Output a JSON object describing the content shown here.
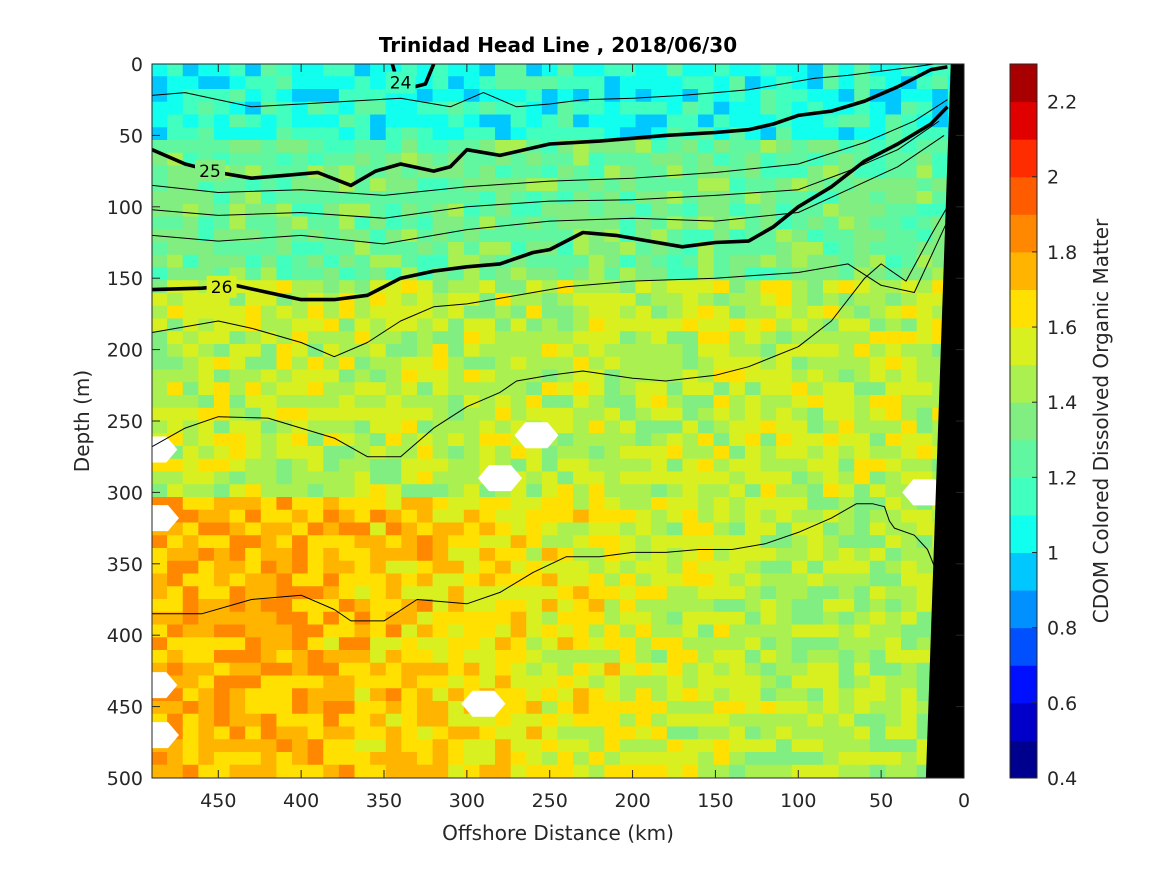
{
  "chart_data": {
    "type": "heatmap",
    "title": "Trinidad Head Line , 2018/06/30",
    "xlabel": "Offshore Distance (km)",
    "ylabel": "Depth (m)",
    "colorbar_label": "CDOM Colored Dissolved Organic Matter",
    "xlim": [
      490,
      0
    ],
    "ylim": [
      500,
      0
    ],
    "y_reversed": true,
    "x_reversed": true,
    "x_ticks": [
      450,
      400,
      350,
      300,
      250,
      200,
      150,
      100,
      50,
      0
    ],
    "y_ticks": [
      0,
      50,
      100,
      150,
      200,
      250,
      300,
      350,
      400,
      450,
      500
    ],
    "colorbar": {
      "range": [
        0.4,
        2.3
      ],
      "ticks": [
        0.4,
        0.6,
        0.8,
        1,
        1.2,
        1.4,
        1.6,
        1.8,
        2,
        2.2
      ],
      "levels": [
        0.4,
        0.5,
        0.6,
        0.7,
        0.8,
        0.9,
        1.0,
        1.1,
        1.2,
        1.3,
        1.4,
        1.5,
        1.6,
        1.7,
        1.8,
        1.9,
        2.0,
        2.1,
        2.2,
        2.3
      ],
      "colors": [
        "#00008f",
        "#0000c8",
        "#0010ff",
        "#0050ff",
        "#0090ff",
        "#00c8ff",
        "#10ffef",
        "#40ffbf",
        "#60f7a0",
        "#80ee80",
        "#aaf050",
        "#d8f020",
        "#ffe000",
        "#ffb400",
        "#ff8800",
        "#ff5c00",
        "#ff2c00",
        "#e00000",
        "#a80000"
      ]
    },
    "field_description": {
      "surface_0_50m": 1.1,
      "upper_50_150m": 1.3,
      "mid_150_300m": 1.5,
      "deep_offshore_300_500m": 1.75,
      "deep_nearshore_300_500m": 1.45
    },
    "isopycnals": [
      {
        "label": "24",
        "bold": true,
        "x": [
          345,
          342,
          335,
          325,
          320
        ],
        "y": [
          0,
          12,
          17,
          14,
          0
        ],
        "label_at": [
          340,
          13
        ]
      },
      {
        "label": "",
        "bold": false,
        "x": [
          490,
          470,
          450,
          430,
          400,
          370,
          340,
          310,
          290,
          270,
          250,
          230,
          200,
          170,
          150,
          130,
          110,
          90,
          70,
          50,
          30,
          18
        ],
        "y": [
          22,
          20,
          25,
          30,
          28,
          26,
          24,
          30,
          20,
          30,
          28,
          25,
          24,
          22,
          20,
          18,
          14,
          10,
          8,
          5,
          2,
          0
        ]
      },
      {
        "label": "25",
        "bold": true,
        "x": [
          490,
          470,
          450,
          430,
          410,
          390,
          370,
          355,
          340,
          320,
          310,
          300,
          280,
          250,
          220,
          200,
          180,
          150,
          130,
          115,
          100,
          80,
          60,
          40,
          20,
          10
        ],
        "y": [
          60,
          70,
          76,
          80,
          78,
          76,
          85,
          75,
          70,
          75,
          72,
          60,
          64,
          56,
          54,
          52,
          50,
          48,
          46,
          42,
          36,
          33,
          26,
          16,
          4,
          2
        ],
        "label_at": [
          455,
          75
        ]
      },
      {
        "label": "",
        "bold": false,
        "x": [
          490,
          450,
          400,
          350,
          300,
          250,
          200,
          150,
          100,
          60,
          30,
          10
        ],
        "y": [
          85,
          90,
          88,
          92,
          86,
          82,
          80,
          76,
          70,
          55,
          40,
          25
        ]
      },
      {
        "label": "",
        "bold": false,
        "x": [
          490,
          450,
          400,
          350,
          300,
          250,
          200,
          150,
          100,
          70,
          40,
          15
        ],
        "y": [
          102,
          106,
          104,
          108,
          100,
          96,
          95,
          92,
          88,
          75,
          60,
          40
        ]
      },
      {
        "label": "",
        "bold": false,
        "x": [
          490,
          450,
          400,
          350,
          300,
          250,
          200,
          150,
          100,
          70,
          40,
          12
        ],
        "y": [
          120,
          124,
          120,
          126,
          116,
          110,
          108,
          110,
          104,
          88,
          72,
          50
        ]
      },
      {
        "label": "26",
        "bold": true,
        "x": [
          490,
          460,
          440,
          420,
          400,
          380,
          360,
          350,
          340,
          320,
          300,
          280,
          260,
          250,
          230,
          210,
          190,
          170,
          150,
          130,
          115,
          100,
          80,
          60,
          40,
          20,
          10
        ],
        "y": [
          158,
          157,
          155,
          160,
          165,
          165,
          162,
          156,
          150,
          145,
          142,
          140,
          132,
          130,
          118,
          120,
          124,
          128,
          125,
          124,
          114,
          100,
          86,
          68,
          56,
          42,
          30
        ],
        "label_at": [
          448,
          156
        ]
      },
      {
        "label": "",
        "bold": false,
        "x": [
          490,
          470,
          450,
          430,
          400,
          380,
          360,
          340,
          320,
          300,
          280,
          260,
          240,
          200,
          150,
          100,
          70,
          50,
          30,
          10
        ],
        "y": [
          188,
          184,
          180,
          185,
          195,
          205,
          195,
          180,
          170,
          168,
          164,
          160,
          156,
          152,
          150,
          146,
          140,
          155,
          160,
          110
        ]
      },
      {
        "label": "",
        "bold": false,
        "x": [
          490,
          470,
          450,
          420,
          400,
          380,
          360,
          340,
          320,
          300,
          280,
          270,
          250,
          230,
          200,
          180,
          150,
          130,
          100,
          80,
          60,
          50,
          35,
          20,
          10
        ],
        "y": [
          268,
          255,
          247,
          248,
          255,
          262,
          275,
          275,
          255,
          240,
          230,
          222,
          218,
          215,
          220,
          222,
          218,
          212,
          198,
          180,
          150,
          140,
          152,
          120,
          100
        ]
      },
      {
        "label": "",
        "bold": false,
        "x": [
          490,
          460,
          430,
          400,
          380,
          370,
          350,
          330,
          300,
          280,
          260,
          240,
          220,
          200,
          180,
          160,
          140,
          120,
          100,
          80,
          65,
          55,
          48,
          45,
          42,
          30,
          22,
          15
        ],
        "y": [
          385,
          385,
          375,
          372,
          382,
          390,
          390,
          375,
          378,
          370,
          356,
          345,
          345,
          342,
          342,
          340,
          340,
          336,
          328,
          318,
          308,
          308,
          310,
          320,
          325,
          330,
          340,
          360
        ]
      }
    ],
    "missing_patches": [
      {
        "x": 258,
        "y": 260
      },
      {
        "x": 280,
        "y": 290
      },
      {
        "x": 290,
        "y": 448
      },
      {
        "x": 487,
        "y": 318
      },
      {
        "x": 487,
        "y": 470
      },
      {
        "x": 488,
        "y": 270
      },
      {
        "x": 488,
        "y": 435
      },
      {
        "x": 24,
        "y": 300
      }
    ],
    "bathymetry_mask": {
      "color": "#000000",
      "polygon_x": [
        8,
        23,
        0,
        0
      ],
      "polygon_y": [
        0,
        500,
        500,
        0
      ]
    }
  }
}
